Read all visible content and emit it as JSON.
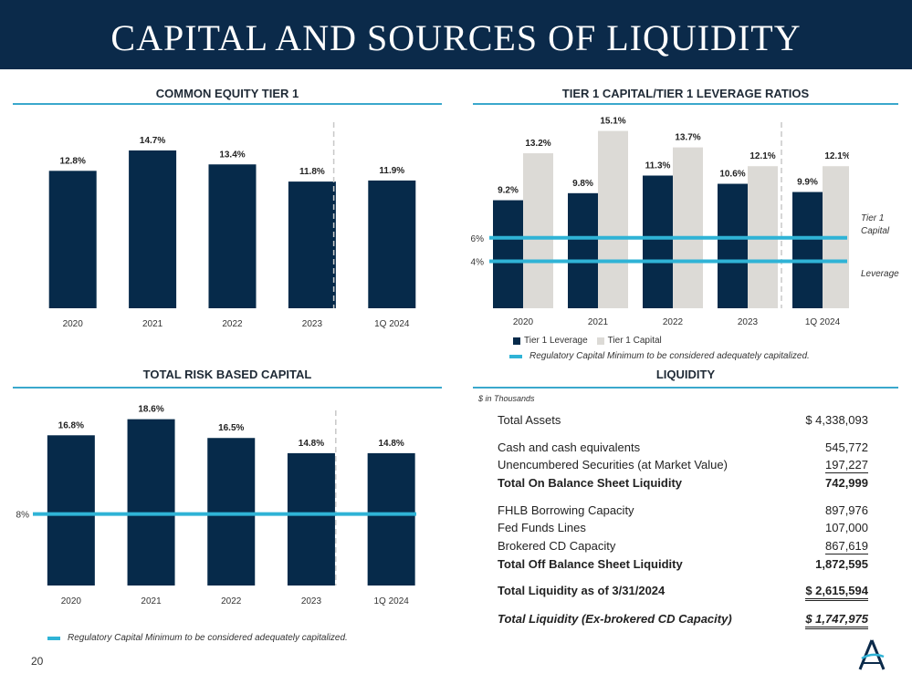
{
  "page": {
    "title": "CAPITAL AND SOURCES OF LIQUIDITY",
    "page_number": "20"
  },
  "colors": {
    "navy": "#0b2a4a",
    "bar_dark": "#062a4a",
    "bar_light": "#dcdad6",
    "reg_line": "#2fb3d6",
    "rule": "#3aa8cc"
  },
  "cet1": {
    "title": "COMMON EQUITY TIER 1"
  },
  "tier1": {
    "title": "TIER 1 CAPITAL/TIER 1 LEVERAGE RATIOS",
    "legend": {
      "leverage": "Tier 1 Leverage",
      "capital": "Tier 1 Capital"
    },
    "note": "Regulatory Capital Minimum to be considered adequately capitalized.",
    "line_labels": {
      "capital_1": "Tier 1",
      "capital_2": "Capital",
      "leverage": "Leverage"
    }
  },
  "trbc": {
    "title": "TOTAL RISK BASED CAPITAL",
    "note": "Regulatory Capital Minimum to be considered adequately capitalized."
  },
  "liquidity": {
    "title": "LIQUIDITY",
    "unit": "$ in Thousands",
    "rows": [
      {
        "label": "Total Assets",
        "value": "$   4,338,093"
      },
      {
        "label": "Cash and cash equivalents",
        "value": "545,772"
      },
      {
        "label": "Unencumbered Securities (at Market Value)",
        "value": "197,227"
      },
      {
        "label": "Total On Balance Sheet Liquidity",
        "value": "742,999"
      },
      {
        "label": "FHLB Borrowing Capacity",
        "value": "897,976"
      },
      {
        "label": "Fed Funds Lines",
        "value": "107,000"
      },
      {
        "label": "Brokered CD Capacity",
        "value": "867,619"
      },
      {
        "label": "Total Off Balance Sheet Liquidity",
        "value": "1,872,595"
      },
      {
        "label": "Total Liquidity as of 3/31/2024",
        "value": "$  2,615,594"
      },
      {
        "label": "Total Liquidity (Ex-brokered CD Capacity)",
        "value": "$  1,747,975"
      }
    ]
  },
  "chart_data": [
    {
      "id": "cet1",
      "type": "bar",
      "title": "COMMON EQUITY TIER 1",
      "categories": [
        "2020",
        "2021",
        "2022",
        "2023",
        "1Q 2024"
      ],
      "values": [
        12.8,
        14.7,
        13.4,
        11.8,
        11.9
      ],
      "labels": [
        "12.8%",
        "14.7%",
        "13.4%",
        "11.8%",
        "11.9%"
      ],
      "ylim": [
        0,
        17.5
      ]
    },
    {
      "id": "tier1",
      "type": "bar",
      "title": "TIER 1 CAPITAL/TIER 1 LEVERAGE RATIOS",
      "categories": [
        "2020",
        "2021",
        "2022",
        "2023",
        "1Q 2024"
      ],
      "series": [
        {
          "name": "Tier 1 Leverage",
          "values": [
            9.2,
            9.8,
            11.3,
            10.6,
            9.9
          ],
          "labels": [
            "9.2%",
            "9.8%",
            "11.3%",
            "10.6%",
            "9.9%"
          ]
        },
        {
          "name": "Tier 1 Capital",
          "values": [
            13.2,
            15.1,
            13.7,
            12.1,
            12.1
          ],
          "labels": [
            "13.2%",
            "15.1%",
            "13.7%",
            "12.1%",
            "12.1%"
          ]
        }
      ],
      "reference_lines": [
        {
          "value": 6,
          "label": "6%",
          "name": "Tier 1 Capital minimum"
        },
        {
          "value": 4,
          "label": "4%",
          "name": "Leverage minimum"
        }
      ],
      "ylim": [
        0,
        16
      ]
    },
    {
      "id": "trbc",
      "type": "bar",
      "title": "TOTAL RISK BASED CAPITAL",
      "categories": [
        "2020",
        "2021",
        "2022",
        "2023",
        "1Q 2024"
      ],
      "values": [
        16.8,
        18.6,
        16.5,
        14.8,
        14.8
      ],
      "labels": [
        "16.8%",
        "18.6%",
        "16.5%",
        "14.8%",
        "14.8%"
      ],
      "reference_lines": [
        {
          "value": 8,
          "label": "8%"
        }
      ],
      "ylim": [
        0,
        20.4
      ]
    }
  ]
}
